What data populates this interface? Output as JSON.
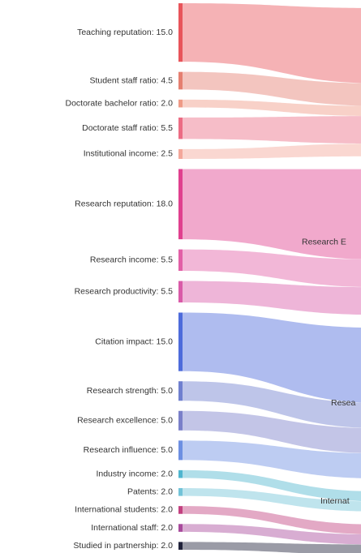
{
  "chart_data": {
    "type": "sankey",
    "title": "",
    "sources": [
      {
        "label": "Teaching reputation: 15.0",
        "value": 15.0,
        "color": "#e8545a",
        "target": 0
      },
      {
        "label": "Student staff ratio: 4.5",
        "value": 4.5,
        "color": "#e57f70",
        "target": 0
      },
      {
        "label": "Doctorate bachelor ratio: 2.0",
        "value": 2.0,
        "color": "#ef9a86",
        "target": 0
      },
      {
        "label": "Doctorate staff ratio: 5.5",
        "value": 5.5,
        "color": "#ec6c84",
        "target": 0
      },
      {
        "label": "Institutional income: 2.5",
        "value": 2.5,
        "color": "#f3a79a",
        "target": 0
      },
      {
        "label": "Research reputation: 18.0",
        "value": 18.0,
        "color": "#e0408e",
        "target": 1
      },
      {
        "label": "Research income: 5.5",
        "value": 5.5,
        "color": "#e25fa6",
        "target": 1
      },
      {
        "label": "Research productivity: 5.5",
        "value": 5.5,
        "color": "#d95aa8",
        "target": 1
      },
      {
        "label": "Citation impact: 15.0",
        "value": 15.0,
        "color": "#4d6bdb",
        "target": 2
      },
      {
        "label": "Research strength: 5.0",
        "value": 5.0,
        "color": "#6f7fcf",
        "target": 2
      },
      {
        "label": "Research excellence: 5.0",
        "value": 5.0,
        "color": "#7a7fc9",
        "target": 2
      },
      {
        "label": "Research influence: 5.0",
        "value": 5.0,
        "color": "#6d8fe2",
        "target": 2
      },
      {
        "label": "Industry income: 2.0",
        "value": 2.0,
        "color": "#4fb5cf",
        "target": 3
      },
      {
        "label": "Patents: 2.0",
        "value": 2.0,
        "color": "#72c3d8",
        "target": 3
      },
      {
        "label": "International students: 2.0",
        "value": 2.0,
        "color": "#c2407f",
        "target": 4
      },
      {
        "label": "International staff: 2.0",
        "value": 2.0,
        "color": "#a84a9c",
        "target": 4
      },
      {
        "label": "Studied in partnership: 2.0",
        "value": 2.0,
        "color": "#20223a",
        "target": 4
      }
    ],
    "targets": [
      {
        "label": ""
      },
      {
        "label": "Research E"
      },
      {
        "label": "Resea"
      },
      {
        "label": "Internat"
      },
      {
        "label": ""
      }
    ]
  }
}
